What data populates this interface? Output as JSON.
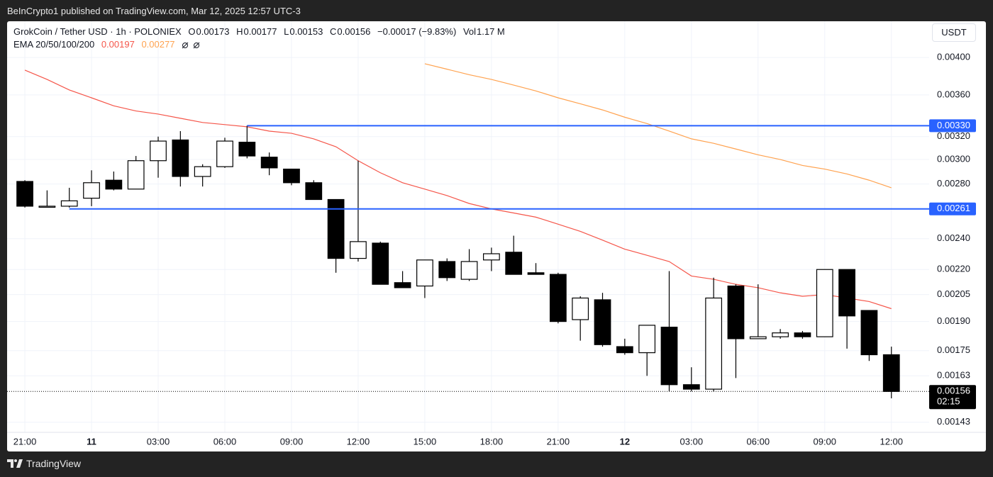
{
  "header": {
    "published": "BeInCrypto1 published on TradingView.com, Mar 12, 2025 12:57 UTC-3",
    "brand": "TradingView"
  },
  "chart_data": {
    "type": "candlestick",
    "symbol": "GrokCoin / Tether USD · 1h · POLONIEX",
    "ohlc_labels": [
      "O",
      "H",
      "L",
      "C"
    ],
    "change": "−0.00017 (−9.83%)",
    "volume_label": "Vol",
    "volume": "1.17 M",
    "currency": "USDT",
    "indicator": "EMA 20/50/100/200",
    "x": [
      0,
      1,
      2,
      3,
      4,
      5,
      6,
      7,
      8,
      9,
      10,
      11,
      12,
      13,
      14,
      15,
      16,
      17,
      18,
      19,
      20,
      21,
      22,
      23,
      24,
      25,
      26,
      27,
      28,
      29,
      30,
      31,
      32,
      33,
      34,
      35,
      36,
      37,
      38,
      39
    ],
    "open": [
      0.00282,
      0.00263,
      0.00263,
      0.00269,
      0.00283,
      0.00276,
      0.00299,
      0.00317,
      0.00286,
      0.00294,
      0.00315,
      0.00302,
      0.00292,
      0.00281,
      0.00268,
      0.00227,
      0.00237,
      0.00212,
      0.0021,
      0.00225,
      0.00214,
      0.00226,
      0.00231,
      0.00218,
      0.00217,
      0.00191,
      0.00202,
      0.00177,
      0.00174,
      0.00187,
      0.00159,
      0.00157,
      0.0021,
      0.00181,
      0.00182,
      0.00184,
      0.00182,
      0.0022,
      0.00196,
      0.00173
    ],
    "high": [
      0.00283,
      0.00275,
      0.00277,
      0.00291,
      0.0029,
      0.00303,
      0.0032,
      0.00325,
      0.00296,
      0.00319,
      0.0033,
      0.00306,
      0.00292,
      0.00283,
      0.00268,
      0.00299,
      0.00238,
      0.00219,
      0.00226,
      0.00227,
      0.00233,
      0.00234,
      0.00242,
      0.00224,
      0.00218,
      0.00204,
      0.00206,
      0.00181,
      0.00188,
      0.00219,
      0.00167,
      0.00215,
      0.00211,
      0.00211,
      0.00186,
      0.00185,
      0.0022,
      0.0022,
      0.00196,
      0.00177
    ],
    "low": [
      0.00262,
      0.00262,
      0.00262,
      0.00263,
      0.00275,
      0.00276,
      0.00285,
      0.00278,
      0.00278,
      0.00293,
      0.00301,
      0.00287,
      0.00279,
      0.00268,
      0.00218,
      0.00225,
      0.00211,
      0.00209,
      0.00203,
      0.00213,
      0.00213,
      0.00219,
      0.00217,
      0.00217,
      0.00189,
      0.0018,
      0.00177,
      0.00173,
      0.00163,
      0.00156,
      0.00156,
      0.00156,
      0.00162,
      0.00181,
      0.00181,
      0.00181,
      0.00182,
      0.00176,
      0.0017,
      0.00153
    ],
    "close": [
      0.00263,
      0.00263,
      0.00267,
      0.00281,
      0.00276,
      0.00299,
      0.00316,
      0.00286,
      0.00294,
      0.00316,
      0.00303,
      0.00293,
      0.00281,
      0.00268,
      0.00227,
      0.00238,
      0.00211,
      0.00209,
      0.00226,
      0.00215,
      0.00225,
      0.0023,
      0.00217,
      0.00217,
      0.0019,
      0.00203,
      0.00178,
      0.00174,
      0.00188,
      0.00159,
      0.00157,
      0.00203,
      0.00181,
      0.00182,
      0.00184,
      0.00182,
      0.0022,
      0.00193,
      0.00173,
      0.00156
    ],
    "up_color": "#ffffff",
    "down_color": "#000000",
    "series": [
      {
        "color": "#f5564a",
        "values": [
          0.00386,
          0.00376,
          0.00365,
          0.00357,
          0.00349,
          0.00344,
          0.00341,
          0.00337,
          0.00333,
          0.00331,
          0.00329,
          0.00325,
          0.00323,
          0.00318,
          0.00311,
          0.00299,
          0.00289,
          0.00281,
          0.00276,
          0.00271,
          0.00265,
          0.00261,
          0.00258,
          0.00255,
          0.0025,
          0.00245,
          0.00239,
          0.00233,
          0.00229,
          0.00225,
          0.00216,
          0.00214,
          0.00211,
          0.00209,
          0.00206,
          0.00204,
          0.00205,
          0.00203,
          0.00201,
          0.00197
        ]
      },
      {
        "color": "#ffa24f",
        "values": [
          null,
          null,
          null,
          null,
          null,
          null,
          null,
          null,
          null,
          null,
          null,
          null,
          null,
          null,
          null,
          null,
          null,
          null,
          0.00393,
          0.00387,
          0.00381,
          0.00376,
          0.0037,
          0.00364,
          0.00357,
          0.00351,
          0.00345,
          0.00338,
          0.00332,
          0.00325,
          0.00318,
          0.00314,
          0.00309,
          0.00304,
          0.003,
          0.00295,
          0.00292,
          0.00288,
          0.00283,
          0.00277
        ]
      }
    ],
    "levels": [
      {
        "value": 0.0033,
        "label": "0.00330",
        "from_x": 10,
        "color": "#2962ff"
      },
      {
        "value": 0.00261,
        "label": "0.00261",
        "from_x": 2,
        "color": "#2962ff"
      }
    ],
    "countdown": "02:15",
    "log_scale": true,
    "grid": true,
    "xlim": [
      -0.8,
      40.7
    ],
    "xticks": [
      {
        "value": 0,
        "label": "21:00"
      },
      {
        "value": 3,
        "label": "11"
      },
      {
        "value": 6,
        "label": "03:00"
      },
      {
        "value": 9,
        "label": "06:00"
      },
      {
        "value": 12,
        "label": "09:00"
      },
      {
        "value": 15,
        "label": "12:00"
      },
      {
        "value": 18,
        "label": "15:00"
      },
      {
        "value": 21,
        "label": "18:00"
      },
      {
        "value": 24,
        "label": "21:00"
      },
      {
        "value": 27,
        "label": "12"
      },
      {
        "value": 30,
        "label": "03:00"
      },
      {
        "value": 33,
        "label": "06:00"
      },
      {
        "value": 36,
        "label": "09:00"
      },
      {
        "value": 39,
        "label": "12:00"
      }
    ],
    "ylim": [
      0.00139,
      0.00443
    ],
    "yticks": [
      {
        "value": 0.004,
        "label": "0.00400"
      },
      {
        "value": 0.0036,
        "label": "0.00360"
      },
      {
        "value": 0.0032,
        "label": "0.00320"
      },
      {
        "value": 0.003,
        "label": "0.00300"
      },
      {
        "value": 0.0028,
        "label": "0.00280"
      },
      {
        "value": 0.0024,
        "label": "0.00240"
      },
      {
        "value": 0.0022,
        "label": "0.00220"
      },
      0.00205,
      {
        "value": 0.0019,
        "label": "0.00190"
      },
      0.00175,
      0.00163,
      0.00143
    ]
  }
}
